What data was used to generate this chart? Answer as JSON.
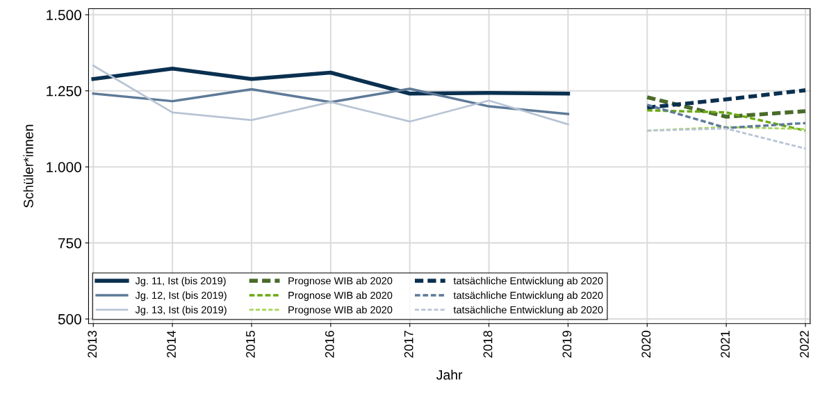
{
  "chart_data": {
    "type": "line",
    "xlabel": "Jahr",
    "ylabel": "Schüler*innen",
    "xlim": [
      2012.94,
      2022.06
    ],
    "xticks": [
      2013,
      2014,
      2015,
      2016,
      2017,
      2018,
      2019,
      2020,
      2021,
      2022
    ],
    "ylim": [
      485,
      1520
    ],
    "yticks": [
      {
        "value": 500,
        "label": "500"
      },
      {
        "value": 750,
        "label": "750"
      },
      {
        "value": 1000,
        "label": "1.000"
      },
      {
        "value": 1250,
        "label": "1.250"
      },
      {
        "value": 1500,
        "label": "1.500"
      }
    ],
    "grid": true,
    "legend": "bottom left",
    "marker": "none",
    "series": [
      {
        "name": "Jg. 11, Ist (bis 2019)",
        "color": "#0a3050",
        "line_style": "solid",
        "x": [
          2013,
          2014,
          2015,
          2016,
          2017,
          2018,
          2019
        ],
        "values": [
          1289,
          1323,
          1289,
          1310,
          1241,
          1243,
          1241
        ]
      },
      {
        "name": "Jg. 12, Ist (bis 2019)",
        "color": "#5e7a98",
        "line_style": "solid",
        "x": [
          2013,
          2014,
          2015,
          2016,
          2017,
          2018,
          2019
        ],
        "values": [
          1241,
          1216,
          1255,
          1213,
          1257,
          1199,
          1174
        ]
      },
      {
        "name": "Jg. 13, Ist (bis 2019)",
        "color": "#b8c4d4",
        "line_style": "solid",
        "x": [
          2013,
          2014,
          2015,
          2016,
          2017,
          2018,
          2019
        ],
        "values": [
          1333,
          1179,
          1154,
          1213,
          1149,
          1218,
          1140
        ]
      },
      {
        "name": "Prognose WIB ab 2020",
        "color": "#4a6b2a",
        "line_style": "dashed",
        "x": [
          2020,
          2021,
          2022
        ],
        "values": [
          1229,
          1165,
          1183
        ]
      },
      {
        "name": "Prognose WIB ab 2020",
        "color": "#6aaa10",
        "line_style": "dashed",
        "x": [
          2020,
          2021,
          2022
        ],
        "values": [
          1186,
          1179,
          1119
        ]
      },
      {
        "name": "Prognose WIB ab 2020",
        "color": "#a6d45a",
        "line_style": "dashed",
        "x": [
          2020,
          2021,
          2022
        ],
        "values": [
          1119,
          1131,
          1124
        ]
      },
      {
        "name": "tatsächliche Entwicklung ab 2020",
        "color": "#0a3050",
        "line_style": "dashed",
        "x": [
          2020,
          2021,
          2022
        ],
        "values": [
          1195,
          1222,
          1252
        ]
      },
      {
        "name": "tatsächliche Entwicklung ab 2020",
        "color": "#5e7a98",
        "line_style": "dashed",
        "x": [
          2020,
          2021,
          2022
        ],
        "values": [
          1204,
          1128,
          1144
        ]
      },
      {
        "name": "tatsächliche Entwicklung ab 2020",
        "color": "#b8c4d4",
        "line_style": "dashed",
        "x": [
          2020,
          2021,
          2022
        ],
        "values": [
          1119,
          1126,
          1060
        ]
      }
    ]
  }
}
